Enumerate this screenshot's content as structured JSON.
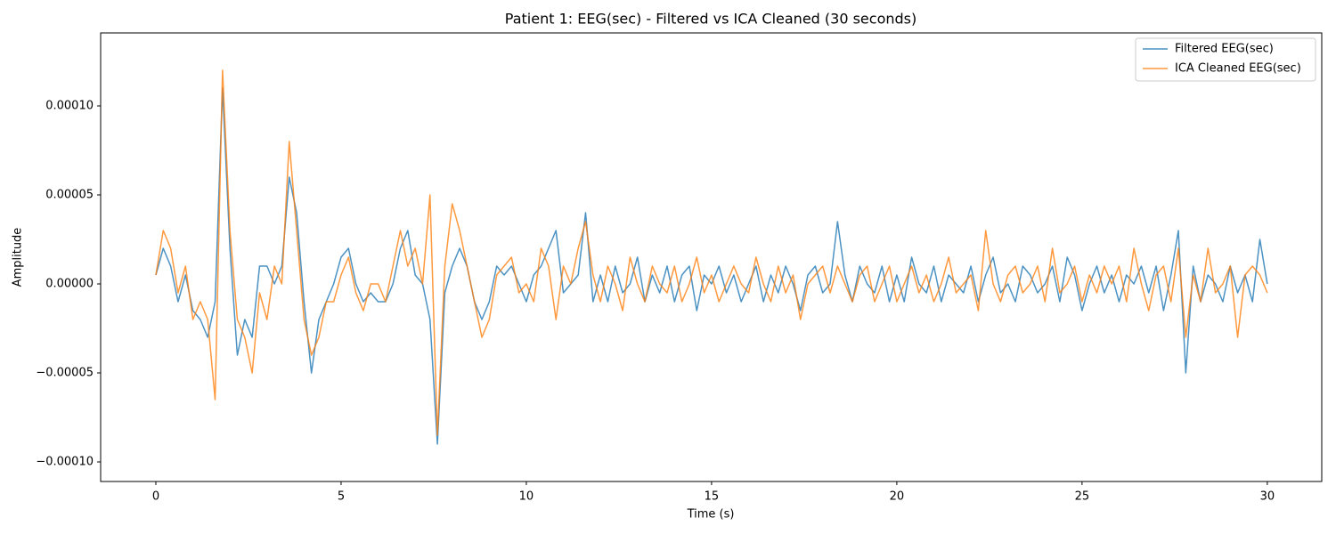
{
  "chart_data": {
    "type": "line",
    "title": "Patient 1: EEG(sec) - Filtered vs ICA Cleaned (30 seconds)",
    "x_label": "Time (s)",
    "y_label": "Amplitude",
    "x": [
      0,
      0.2,
      0.4,
      0.6,
      0.8,
      1,
      1.2,
      1.4,
      1.6,
      1.8,
      2,
      2.2,
      2.4,
      2.6,
      2.8,
      3,
      3.2,
      3.4,
      3.6,
      3.8,
      4,
      4.2,
      4.4,
      4.6,
      4.8,
      5,
      5.2,
      5.4,
      5.6,
      5.8,
      6,
      6.2,
      6.4,
      6.6,
      6.8,
      7,
      7.2,
      7.4,
      7.6,
      7.8,
      8,
      8.2,
      8.4,
      8.6,
      8.8,
      9,
      9.2,
      9.4,
      9.6,
      9.8,
      10,
      10.2,
      10.4,
      10.6,
      10.8,
      11,
      11.2,
      11.4,
      11.6,
      11.8,
      12,
      12.2,
      12.4,
      12.6,
      12.8,
      13,
      13.2,
      13.4,
      13.6,
      13.8,
      14,
      14.2,
      14.4,
      14.6,
      14.8,
      15,
      15.2,
      15.4,
      15.6,
      15.8,
      16,
      16.2,
      16.4,
      16.6,
      16.8,
      17,
      17.2,
      17.4,
      17.6,
      17.8,
      18,
      18.2,
      18.4,
      18.6,
      18.8,
      19,
      19.2,
      19.4,
      19.6,
      19.8,
      20,
      20.2,
      20.4,
      20.6,
      20.8,
      21,
      21.2,
      21.4,
      21.6,
      21.8,
      22,
      22.2,
      22.4,
      22.6,
      22.8,
      23,
      23.2,
      23.4,
      23.6,
      23.8,
      24,
      24.2,
      24.4,
      24.6,
      24.8,
      25,
      25.2,
      25.4,
      25.6,
      25.8,
      26,
      26.2,
      26.4,
      26.6,
      26.8,
      27,
      27.2,
      27.4,
      27.6,
      27.8,
      28,
      28.2,
      28.4,
      28.6,
      28.8,
      29,
      29.2,
      29.4,
      29.6,
      29.8,
      30
    ],
    "series": [
      {
        "name": "Filtered EEG(sec)",
        "color": "#1f77b4",
        "values": [
          5e-06,
          2e-05,
          1e-05,
          -1e-05,
          5e-06,
          -1.5e-05,
          -2e-05,
          -3e-05,
          -1e-05,
          0.00011,
          2e-05,
          -4e-05,
          -2e-05,
          -3e-05,
          1e-05,
          1e-05,
          0,
          1e-05,
          6e-05,
          4e-05,
          -1e-05,
          -5e-05,
          -2e-05,
          -1e-05,
          0,
          1.5e-05,
          2e-05,
          0,
          -1e-05,
          -5e-06,
          -1e-05,
          -1e-05,
          0,
          2e-05,
          3e-05,
          5e-06,
          0,
          -2e-05,
          -9e-05,
          -5e-06,
          1e-05,
          2e-05,
          1e-05,
          -1e-05,
          -2e-05,
          -1e-05,
          1e-05,
          5e-06,
          1e-05,
          0,
          -1e-05,
          5e-06,
          1e-05,
          2e-05,
          3e-05,
          -5e-06,
          0,
          5e-06,
          4e-05,
          -1e-05,
          5e-06,
          -1e-05,
          1e-05,
          -5e-06,
          0,
          1.5e-05,
          -1e-05,
          5e-06,
          -5e-06,
          1e-05,
          -1e-05,
          5e-06,
          1e-05,
          -1.5e-05,
          5e-06,
          0,
          1e-05,
          -5e-06,
          5e-06,
          -1e-05,
          0,
          1e-05,
          -1e-05,
          5e-06,
          -5e-06,
          1e-05,
          0,
          -1.5e-05,
          5e-06,
          1e-05,
          -5e-06,
          0,
          3.5e-05,
          5e-06,
          -1e-05,
          1e-05,
          0,
          -5e-06,
          1e-05,
          -1e-05,
          5e-06,
          -1e-05,
          1.5e-05,
          0,
          -5e-06,
          1e-05,
          -1e-05,
          5e-06,
          0,
          -5e-06,
          1e-05,
          -1e-05,
          5e-06,
          1.5e-05,
          -5e-06,
          0,
          -1e-05,
          1e-05,
          5e-06,
          -5e-06,
          0,
          1e-05,
          -1e-05,
          1.5e-05,
          5e-06,
          -1.5e-05,
          0,
          1e-05,
          -5e-06,
          5e-06,
          -1e-05,
          5e-06,
          0,
          1e-05,
          -5e-06,
          1e-05,
          -1.5e-05,
          5e-06,
          3e-05,
          -5e-05,
          1e-05,
          -1e-05,
          5e-06,
          0,
          -1e-05,
          1e-05,
          -5e-06,
          5e-06,
          -1e-05,
          2.5e-05,
          0
        ]
      },
      {
        "name": "ICA Cleaned EEG(sec)",
        "color": "#ff7f0e",
        "values": [
          5e-06,
          3e-05,
          2e-05,
          -5e-06,
          1e-05,
          -2e-05,
          -1e-05,
          -2e-05,
          -6.5e-05,
          0.00012,
          3e-05,
          -2e-05,
          -3e-05,
          -5e-05,
          -5e-06,
          -2e-05,
          1e-05,
          0,
          8e-05,
          3e-05,
          -2e-05,
          -4e-05,
          -3e-05,
          -1e-05,
          -1e-05,
          5e-06,
          1.5e-05,
          -5e-06,
          -1.5e-05,
          0,
          0,
          -1e-05,
          1e-05,
          3e-05,
          1e-05,
          2e-05,
          0,
          5e-05,
          -8.5e-05,
          1e-05,
          4.5e-05,
          3e-05,
          1e-05,
          -1e-05,
          -3e-05,
          -2e-05,
          5e-06,
          1e-05,
          1.5e-05,
          -5e-06,
          0,
          -1e-05,
          2e-05,
          1e-05,
          -2e-05,
          1e-05,
          0,
          2e-05,
          3.5e-05,
          5e-06,
          -1e-05,
          1e-05,
          0,
          -1.5e-05,
          1.5e-05,
          0,
          -1e-05,
          1e-05,
          0,
          -5e-06,
          1e-05,
          -1e-05,
          0,
          1.5e-05,
          -5e-06,
          5e-06,
          -1e-05,
          0,
          1e-05,
          0,
          -5e-06,
          1.5e-05,
          0,
          -1e-05,
          1e-05,
          -5e-06,
          5e-06,
          -2e-05,
          0,
          5e-06,
          1e-05,
          -5e-06,
          1e-05,
          0,
          -1e-05,
          5e-06,
          1e-05,
          -1e-05,
          0,
          1e-05,
          -1e-05,
          0,
          1e-05,
          -5e-06,
          5e-06,
          -1e-05,
          0,
          1.5e-05,
          -5e-06,
          0,
          5e-06,
          -1.5e-05,
          3e-05,
          0,
          -1e-05,
          5e-06,
          1e-05,
          -5e-06,
          0,
          1e-05,
          -1e-05,
          2e-05,
          -5e-06,
          0,
          1e-05,
          -1e-05,
          5e-06,
          -5e-06,
          1e-05,
          0,
          1e-05,
          -1e-05,
          2e-05,
          0,
          -1.5e-05,
          5e-06,
          1e-05,
          -1e-05,
          2e-05,
          -3e-05,
          5e-06,
          -1e-05,
          2e-05,
          -5e-06,
          0,
          1e-05,
          -3e-05,
          5e-06,
          1e-05,
          5e-06,
          -5e-06
        ]
      }
    ],
    "xlim": [
      -1.49,
      31.47
    ],
    "xticks": [
      0,
      5,
      10,
      15,
      20,
      25,
      30
    ],
    "ylim": [
      -0.000111,
      0.000141
    ],
    "yticks": [
      {
        "value": -0.0001,
        "label": "−0.00010"
      },
      {
        "value": -5e-05,
        "label": "−0.00005"
      },
      {
        "value": 0,
        "label": "0.00000"
      },
      {
        "value": 5e-05,
        "label": "0.00005"
      },
      {
        "value": 0.0001,
        "label": "0.00010"
      }
    ],
    "legend": "upper right",
    "grid": false
  }
}
